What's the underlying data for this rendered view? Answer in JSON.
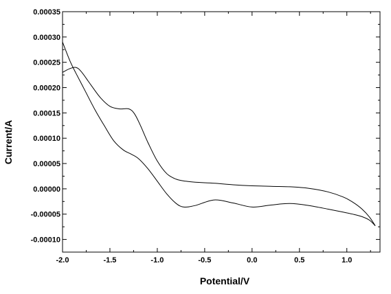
{
  "chart_data": {
    "type": "line",
    "title": "",
    "xlabel": "Potential/V",
    "ylabel": "Current/A",
    "xlim": [
      -2.0,
      1.35
    ],
    "ylim": [
      -0.000125,
      0.00035
    ],
    "x_ticks": [
      {
        "value": -2.0,
        "label": "-2.0"
      },
      {
        "value": -1.5,
        "label": "-1.5"
      },
      {
        "value": -1.0,
        "label": "-1.0"
      },
      {
        "value": -0.5,
        "label": "-0.5"
      },
      {
        "value": 0.0,
        "label": "0.0"
      },
      {
        "value": 0.5,
        "label": "0.5"
      },
      {
        "value": 1.0,
        "label": "1.0"
      }
    ],
    "y_ticks": [
      {
        "value": 0.00035,
        "label": "0.00035"
      },
      {
        "value": 0.0003,
        "label": "0.00030"
      },
      {
        "value": 0.00025,
        "label": "0.00025"
      },
      {
        "value": 0.0002,
        "label": "0.00020"
      },
      {
        "value": 0.00015,
        "label": "0.00015"
      },
      {
        "value": 0.0001,
        "label": "0.00010"
      },
      {
        "value": 5e-05,
        "label": "0.00005"
      },
      {
        "value": 0.0,
        "label": "0.00000"
      },
      {
        "value": -5e-05,
        "label": "-0.00005"
      },
      {
        "value": -0.0001,
        "label": "-0.00010"
      }
    ],
    "grid": false,
    "legend": "none",
    "series": [
      {
        "color": "#000000",
        "x": [
          1.3,
          1.24,
          1.16,
          1.06,
          0.96,
          0.8,
          0.6,
          0.4,
          0.2,
          0.0,
          -0.2,
          -0.4,
          -0.6,
          -0.72,
          -0.8,
          -0.9,
          -1.0,
          -1.1,
          -1.2,
          -1.28,
          -1.36,
          -1.46,
          -1.56,
          -1.66,
          -1.76,
          -1.86,
          -1.92,
          -2.0
        ],
        "y": [
          -7.3e-05,
          -6.2e-05,
          -5.5e-05,
          -5e-05,
          -4.6e-05,
          -4e-05,
          -3.3e-05,
          -2.9e-05,
          -3.2e-05,
          -3.6e-05,
          -2.8e-05,
          -2.2e-05,
          -3.3e-05,
          -3.6e-05,
          -2.9e-05,
          -1e-05,
          1.5e-05,
          4e-05,
          6e-05,
          6.9e-05,
          7.7e-05,
          9.5e-05,
          0.000125,
          0.000157,
          0.000193,
          0.000229,
          0.000252,
          0.00029
        ]
      },
      {
        "color": "#000000",
        "x": [
          -2.0,
          -1.93,
          -1.86,
          -1.8,
          -1.7,
          -1.6,
          -1.5,
          -1.4,
          -1.3,
          -1.24,
          -1.18,
          -1.1,
          -1.0,
          -0.9,
          -0.8,
          -0.7,
          -0.6,
          -0.4,
          -0.2,
          0.0,
          0.2,
          0.4,
          0.6,
          0.8,
          0.96,
          1.06,
          1.16,
          1.24,
          1.3
        ],
        "y": [
          0.00023,
          0.000237,
          0.00024,
          0.000231,
          0.000205,
          0.00018,
          0.000163,
          0.000158,
          0.000158,
          0.000148,
          0.000126,
          9.2e-05,
          5.5e-05,
          3e-05,
          1.9e-05,
          1.5e-05,
          1.3e-05,
          1.1e-05,
          8e-06,
          6e-06,
          5e-06,
          4e-06,
          1e-06,
          -6e-06,
          -1.6e-05,
          -2.6e-05,
          -4e-05,
          -5.6e-05,
          -7.3e-05
        ]
      }
    ]
  }
}
